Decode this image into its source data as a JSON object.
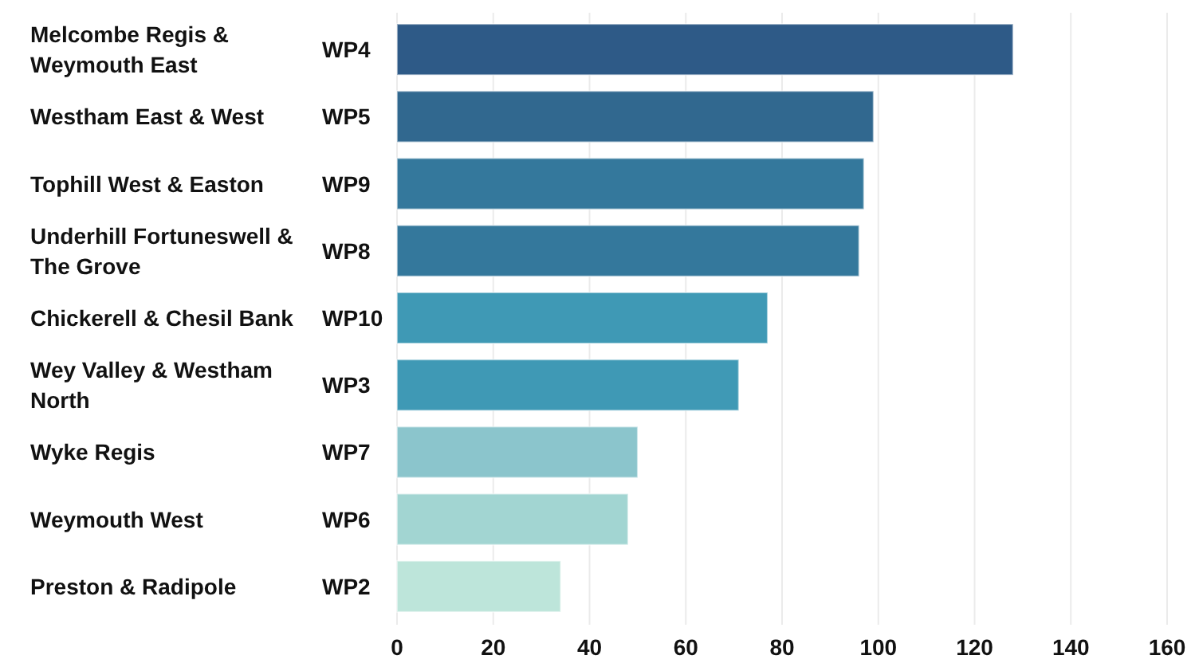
{
  "chart_data": {
    "type": "bar",
    "orientation": "horizontal",
    "categories": [
      "Melcombe Regis & Weymouth East",
      "Westham East & West",
      "Tophill West & Easton",
      "Underhill Fortuneswell & The Grove",
      "Chickerell & Chesil Bank",
      "Wey Valley & Westham North",
      "Wyke Regis",
      "Weymouth West",
      "Preston & Radipole"
    ],
    "values": [
      128,
      99,
      97,
      96,
      77,
      71,
      50,
      48,
      34
    ],
    "colors": [
      "#2e5a87",
      "#31688f",
      "#34789c",
      "#34789c",
      "#3f99b5",
      "#3f99b5",
      "#8bc5cc",
      "#a2d5d2",
      "#bde5da"
    ],
    "annotations": [
      "WP4",
      "WP5",
      "WP9",
      "WP8",
      "WP10",
      "WP3",
      "WP7",
      "WP6",
      "WP2"
    ],
    "xlim": [
      0,
      160
    ],
    "xticks": [
      0,
      20,
      40,
      60,
      80,
      100,
      120,
      140,
      160
    ],
    "grid": "x"
  }
}
